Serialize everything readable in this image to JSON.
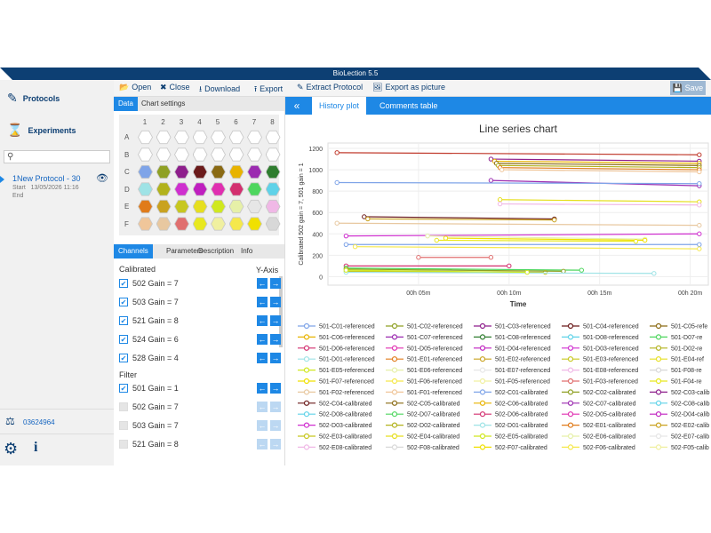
{
  "app": {
    "title": "BioLection 5.5"
  },
  "nav": {
    "protocols": "Protocols",
    "experiments": "Experiments",
    "search_icon": "search-icon",
    "protocol_name": "1New Protocol - 30",
    "start_label": "Start",
    "start_value": "13/05/2026 11:16",
    "end_label": "End",
    "license": "03624964"
  },
  "toolbar": {
    "open": "Open",
    "close": "Close",
    "download": "Download",
    "export": "Export",
    "extract": "Extract Protocol",
    "export_picture": "Export as picture",
    "save": "Save"
  },
  "tabs_top": {
    "data": "Data",
    "chart_settings": "Chart settings"
  },
  "plate": {
    "cols": [
      "1",
      "2",
      "3",
      "4",
      "5",
      "6",
      "7",
      "8"
    ],
    "rows": [
      "A",
      "B",
      "C",
      "D",
      "E",
      "F"
    ],
    "colors": [
      [
        "#ffffff",
        "#ffffff",
        "#ffffff",
        "#ffffff",
        "#ffffff",
        "#ffffff",
        "#ffffff",
        "#ffffff"
      ],
      [
        "#ffffff",
        "#ffffff",
        "#ffffff",
        "#ffffff",
        "#ffffff",
        "#ffffff",
        "#ffffff",
        "#ffffff"
      ],
      [
        "#7fa4e8",
        "#8fa024",
        "#8e1f8c",
        "#6b1b1b",
        "#8a6a13",
        "#e8b300",
        "#9b2bb0",
        "#2f7d2f"
      ],
      [
        "#9ee3e6",
        "#b2b21c",
        "#cf2fcf",
        "#bf1fbf",
        "#e02fb0",
        "#d32f6f",
        "#4ed65e",
        "#5fd2e8"
      ],
      [
        "#e07b1a",
        "#c9a21f",
        "#c7c71f",
        "#e6df1f",
        "#d0e81f",
        "#e6f0a8",
        "#e6e6e6",
        "#f0b8e6"
      ],
      [
        "#f0c69a",
        "#e8c8a0",
        "#e06f6f",
        "#e8e81f",
        "#f0f0a0",
        "#f5e84c",
        "#f0e000",
        "#d8d8d8"
      ]
    ]
  },
  "tabs_bottom": {
    "channels": "Channels",
    "parameters": "Parameters",
    "description": "Description",
    "info": "Info"
  },
  "channels": {
    "calibrated_label": "Calibrated",
    "yaxis_label": "Y-Axis",
    "filter_label": "Filter",
    "calibrated": [
      "502 Gain = 7",
      "503 Gain = 7",
      "521 Gain = 8",
      "524 Gain = 6",
      "528 Gain = 4"
    ],
    "filter": [
      {
        "label": "501 Gain = 1",
        "checked": true
      },
      {
        "label": "502 Gain = 7",
        "checked": false
      },
      {
        "label": "503 Gain = 7",
        "checked": false
      },
      {
        "label": "521 Gain = 8",
        "checked": false
      }
    ]
  },
  "right_tabs": {
    "history": "History plot",
    "comments": "Comments table"
  },
  "chart_data": {
    "type": "line",
    "title": "Line series chart",
    "xlabel": "Time",
    "ylabel": "Calibrated 502 gain = 7, 501 gain = 1",
    "yticks": [
      0,
      200,
      400,
      600,
      800,
      1000,
      1200
    ],
    "ylim": [
      -80,
      1250
    ],
    "xticks": [
      "00h 05m",
      "00h 10m",
      "00h 15m",
      "00h 20m"
    ],
    "xlim": [
      0,
      21
    ],
    "grid": true,
    "legend_position": "bottom",
    "series_lines": [
      {
        "c": "#c0392b",
        "pts": [
          [
            0.5,
            1160
          ],
          [
            20.5,
            1140
          ]
        ]
      },
      {
        "c": "#8e1f8c",
        "pts": [
          [
            9,
            1100
          ],
          [
            20.5,
            1080
          ]
        ]
      },
      {
        "c": "#e8b300",
        "pts": [
          [
            9.2,
            1080
          ],
          [
            20.5,
            1060
          ]
        ]
      },
      {
        "c": "#8a6a13",
        "pts": [
          [
            9.3,
            1060
          ],
          [
            20.5,
            1040
          ]
        ]
      },
      {
        "c": "#b2b21c",
        "pts": [
          [
            9.4,
            1040
          ],
          [
            20.5,
            1020
          ]
        ]
      },
      {
        "c": "#e07b1a",
        "pts": [
          [
            9.5,
            1020
          ],
          [
            20.5,
            1000
          ]
        ]
      },
      {
        "c": "#f0c69a",
        "pts": [
          [
            9.6,
            1000
          ],
          [
            20.5,
            980
          ]
        ]
      },
      {
        "c": "#9b2bb0",
        "pts": [
          [
            9.0,
            900
          ],
          [
            20.5,
            850
          ]
        ]
      },
      {
        "c": "#7fa4e8",
        "pts": [
          [
            0.5,
            880
          ],
          [
            20.5,
            870
          ]
        ]
      },
      {
        "c": "#e6df1f",
        "pts": [
          [
            9.5,
            720
          ],
          [
            20.5,
            700
          ]
        ]
      },
      {
        "c": "#f0b8e6",
        "pts": [
          [
            9.5,
            680
          ],
          [
            20.5,
            670
          ]
        ]
      },
      {
        "c": "#6b1b1b",
        "pts": [
          [
            2,
            560
          ],
          [
            12.5,
            540
          ]
        ]
      },
      {
        "c": "#c9a21f",
        "pts": [
          [
            2.2,
            540
          ],
          [
            12.5,
            530
          ]
        ]
      },
      {
        "c": "#e8c8a0",
        "pts": [
          [
            0.5,
            500
          ],
          [
            20.5,
            480
          ]
        ]
      },
      {
        "c": "#cf2fcf",
        "pts": [
          [
            1,
            380
          ],
          [
            20.5,
            400
          ]
        ]
      },
      {
        "c": "#e6f0a8",
        "pts": [
          [
            5.5,
            380
          ],
          [
            17.5,
            350
          ]
        ]
      },
      {
        "c": "#f0e000",
        "pts": [
          [
            6.5,
            360
          ],
          [
            17.5,
            340
          ]
        ]
      },
      {
        "c": "#e8e81f",
        "pts": [
          [
            6,
            340
          ],
          [
            17,
            330
          ]
        ]
      },
      {
        "c": "#7fa4e8",
        "pts": [
          [
            1,
            300
          ],
          [
            20.5,
            300
          ]
        ]
      },
      {
        "c": "#f5e84c",
        "pts": [
          [
            1.5,
            280
          ],
          [
            20.5,
            260
          ]
        ]
      },
      {
        "c": "#e06f6f",
        "pts": [
          [
            5,
            180
          ],
          [
            9,
            180
          ]
        ]
      },
      {
        "c": "#d32f6f",
        "pts": [
          [
            1,
            100
          ],
          [
            10,
            100
          ]
        ]
      },
      {
        "c": "#4ed65e",
        "pts": [
          [
            1,
            80
          ],
          [
            14,
            60
          ]
        ]
      },
      {
        "c": "#c7c71f",
        "pts": [
          [
            1,
            50
          ],
          [
            12,
            40
          ]
        ]
      },
      {
        "c": "#8fa024",
        "pts": [
          [
            1,
            70
          ],
          [
            13,
            50
          ]
        ]
      },
      {
        "c": "#9ee3e6",
        "pts": [
          [
            1,
            40
          ],
          [
            18,
            30
          ]
        ]
      },
      {
        "c": "#d0e81f",
        "pts": [
          [
            1,
            60
          ],
          [
            11,
            40
          ]
        ]
      }
    ],
    "legend": [
      {
        "name": "501-C01-referenced",
        "c": "#7fa4e8"
      },
      {
        "name": "501-C02-referenced",
        "c": "#8fa024"
      },
      {
        "name": "501-C03-referenced",
        "c": "#8e1f8c"
      },
      {
        "name": "501-C04-referenced",
        "c": "#6b1b1b"
      },
      {
        "name": "501-C05-refe",
        "c": "#8a6a13"
      },
      {
        "name": "501-C06-referenced",
        "c": "#e8b300"
      },
      {
        "name": "501-C07-referenced",
        "c": "#9b2bb0"
      },
      {
        "name": "501-C08-referenced",
        "c": "#2f7d2f"
      },
      {
        "name": "501-D08-referenced",
        "c": "#5fd2e8"
      },
      {
        "name": "501-D07-re",
        "c": "#4ed65e"
      },
      {
        "name": "501-D06-referenced",
        "c": "#d32f6f"
      },
      {
        "name": "501-D05-referenced",
        "c": "#e02fb0"
      },
      {
        "name": "501-D04-referenced",
        "c": "#bf1fbf"
      },
      {
        "name": "501-D03-referenced",
        "c": "#cf2fcf"
      },
      {
        "name": "501-D02-re",
        "c": "#b2b21c"
      },
      {
        "name": "501-D01-referenced",
        "c": "#9ee3e6"
      },
      {
        "name": "501-E01-referenced",
        "c": "#e07b1a"
      },
      {
        "name": "501-E02-referenced",
        "c": "#c9a21f"
      },
      {
        "name": "501-E03-referenced",
        "c": "#c7c71f"
      },
      {
        "name": "501-E04-ref",
        "c": "#e6df1f"
      },
      {
        "name": "501-E05-referenced",
        "c": "#d0e81f"
      },
      {
        "name": "501-E06-referenced",
        "c": "#e6f0a8"
      },
      {
        "name": "501-E07-referenced",
        "c": "#e6e6e6"
      },
      {
        "name": "501-E08-referenced",
        "c": "#f0b8e6"
      },
      {
        "name": "501-F08-re",
        "c": "#d8d8d8"
      },
      {
        "name": "501-F07-referenced",
        "c": "#f0e000"
      },
      {
        "name": "501-F06-referenced",
        "c": "#f5e84c"
      },
      {
        "name": "501-F05-referenced",
        "c": "#f0f0a0"
      },
      {
        "name": "501-F03-referenced",
        "c": "#e06f6f"
      },
      {
        "name": "501-F04-re",
        "c": "#e8e81f"
      },
      {
        "name": "501-F02-referenced",
        "c": "#e8c8a0"
      },
      {
        "name": "501-F01-referenced",
        "c": "#f0c69a"
      },
      {
        "name": "502-C01-calibrated",
        "c": "#7fa4e8"
      },
      {
        "name": "502-C02-calibrated",
        "c": "#8fa024"
      },
      {
        "name": "502-C03-calib",
        "c": "#8e1f8c"
      },
      {
        "name": "502-C04-calibrated",
        "c": "#6b1b1b"
      },
      {
        "name": "502-C05-calibrated",
        "c": "#8a6a13"
      },
      {
        "name": "502-C06-calibrated",
        "c": "#e8b300"
      },
      {
        "name": "502-C07-calibrated",
        "c": "#9b2bb0"
      },
      {
        "name": "502-C08-calib",
        "c": "#5fd2e8"
      },
      {
        "name": "502-D08-calibrated",
        "c": "#5fd2e8"
      },
      {
        "name": "502-D07-calibrated",
        "c": "#4ed65e"
      },
      {
        "name": "502-D06-calibrated",
        "c": "#d32f6f"
      },
      {
        "name": "502-D05-calibrated",
        "c": "#e02fb0"
      },
      {
        "name": "502-D04-calib",
        "c": "#bf1fbf"
      },
      {
        "name": "502-D03-calibrated",
        "c": "#cf2fcf"
      },
      {
        "name": "502-D02-calibrated",
        "c": "#b2b21c"
      },
      {
        "name": "502-D01-calibrated",
        "c": "#9ee3e6"
      },
      {
        "name": "502-E01-calibrated",
        "c": "#e07b1a"
      },
      {
        "name": "502-E02-calib",
        "c": "#c9a21f"
      },
      {
        "name": "502-E03-calibrated",
        "c": "#c7c71f"
      },
      {
        "name": "502-E04-calibrated",
        "c": "#e6df1f"
      },
      {
        "name": "502-E05-calibrated",
        "c": "#d0e81f"
      },
      {
        "name": "502-E06-calibrated",
        "c": "#e6f0a8"
      },
      {
        "name": "502-E07-calib",
        "c": "#e6e6e6"
      },
      {
        "name": "502-E08-calibrated",
        "c": "#f0b8e6"
      },
      {
        "name": "502-F08-calibrated",
        "c": "#d8d8d8"
      },
      {
        "name": "502-F07-calibrated",
        "c": "#f0e000"
      },
      {
        "name": "502-F06-calibrated",
        "c": "#f5e84c"
      },
      {
        "name": "502-F05-calib",
        "c": "#f0f0a0"
      }
    ]
  }
}
